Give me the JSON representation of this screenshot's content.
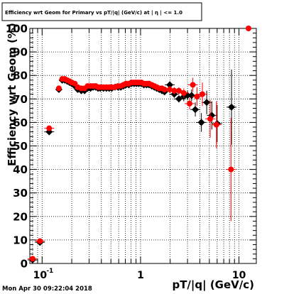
{
  "chart_data": {
    "type": "scatter",
    "title": "Efficiency wrt Geom for Primary vs pT/|q| (GeV/c) at | η | <= 1.0",
    "xlabel": "pT/|q| (GeV/c)",
    "ylabel": "Efficiency wrt Geom (%)",
    "x_scale": "log",
    "xlim": [
      0.075,
      15
    ],
    "ylim": [
      0,
      100
    ],
    "grid": true,
    "x_ticks": [
      {
        "value": 0.1,
        "label": "10",
        "exp": "-1"
      },
      {
        "value": 1,
        "label": "1",
        "exp": ""
      },
      {
        "value": 10,
        "label": "10",
        "exp": ""
      }
    ],
    "y_ticks": [
      {
        "value": 0,
        "label": "0"
      },
      {
        "value": 10,
        "label": "10"
      },
      {
        "value": 20,
        "label": "20"
      },
      {
        "value": 30,
        "label": "30"
      },
      {
        "value": 40,
        "label": "40"
      },
      {
        "value": 50,
        "label": "50"
      },
      {
        "value": 60,
        "label": "60"
      },
      {
        "value": 70,
        "label": "70"
      },
      {
        "value": 80,
        "label": "80"
      },
      {
        "value": 90,
        "label": "90"
      },
      {
        "value": 100,
        "label": "100"
      }
    ],
    "series": [
      {
        "color": "#000000",
        "marker": "diamond",
        "x": [
          0.08,
          0.095,
          0.118,
          0.148,
          0.16,
          0.17,
          0.18,
          0.19,
          0.2,
          0.215,
          0.23,
          0.25,
          0.27,
          0.29,
          0.31,
          0.33,
          0.35,
          0.37,
          0.39,
          0.42,
          0.45,
          0.48,
          0.51,
          0.55,
          0.59,
          0.63,
          0.67,
          0.71,
          0.76,
          0.81,
          0.86,
          0.91,
          0.96,
          1.02,
          1.08,
          1.15,
          1.22,
          1.3,
          1.38,
          1.46,
          1.55,
          1.65,
          1.75,
          1.98,
          2.2,
          2.45,
          2.75,
          3.0,
          3.3,
          3.6,
          4.15,
          4.7,
          5.3,
          6.0,
          8.4
        ],
        "y": [
          1.5,
          9,
          56,
          74,
          78,
          78,
          77.5,
          77,
          76.5,
          75.5,
          74,
          73.5,
          73.5,
          74.5,
          74.5,
          75,
          75,
          74.5,
          74.5,
          74.5,
          74.5,
          74.5,
          74.5,
          75,
          75,
          75,
          75.5,
          76,
          76,
          76.5,
          76.5,
          76.5,
          76.5,
          76.5,
          76,
          76,
          76,
          75.5,
          75,
          74.5,
          74,
          73.5,
          73,
          76,
          72,
          70,
          71,
          71.5,
          71.5,
          65.5,
          60,
          68.5,
          63,
          59.5,
          66.5
        ],
        "err": [
          0,
          0,
          0,
          0,
          0,
          0,
          0,
          0,
          0,
          0,
          0,
          0,
          0,
          0,
          0,
          0,
          0,
          0,
          0,
          0,
          0,
          0,
          0,
          0,
          0,
          0,
          0,
          0,
          0,
          0,
          0,
          0,
          0,
          0,
          0,
          0,
          0,
          0,
          0,
          0,
          0,
          0,
          0,
          1.5,
          1.5,
          1.5,
          2,
          2,
          2.5,
          3,
          4,
          5,
          6,
          8,
          16
        ],
        "xerr_only": [
          true,
          true,
          true,
          false,
          false,
          false,
          false,
          false,
          false,
          false,
          false,
          false,
          false,
          false,
          false,
          false,
          false,
          false,
          false,
          false,
          false,
          false,
          false,
          false,
          false,
          false,
          false,
          false,
          false,
          false,
          false,
          false,
          false,
          false,
          false,
          false,
          false,
          false,
          false,
          false,
          false,
          false,
          false,
          true,
          true,
          true,
          true,
          true,
          true,
          true,
          true,
          true,
          true,
          true,
          true
        ]
      },
      {
        "color": "#ff0000",
        "marker": "circle",
        "x": [
          0.08,
          0.095,
          0.118,
          0.148,
          0.16,
          0.17,
          0.18,
          0.19,
          0.2,
          0.215,
          0.23,
          0.25,
          0.27,
          0.29,
          0.31,
          0.33,
          0.35,
          0.37,
          0.39,
          0.42,
          0.45,
          0.48,
          0.51,
          0.55,
          0.59,
          0.63,
          0.67,
          0.71,
          0.76,
          0.81,
          0.86,
          0.91,
          0.96,
          1.02,
          1.08,
          1.15,
          1.22,
          1.3,
          1.38,
          1.46,
          1.55,
          1.65,
          1.75,
          1.98,
          2.2,
          2.45,
          2.75,
          3.15,
          3.4,
          3.75,
          4.25,
          5.1,
          5.9,
          8.3,
          12.5
        ],
        "y": [
          2,
          9.5,
          57.5,
          74.5,
          78.5,
          78.5,
          78,
          77.5,
          77,
          76.5,
          75,
          74.5,
          74.5,
          75.5,
          75.5,
          75.5,
          75.5,
          75,
          75,
          75,
          75,
          75,
          75,
          75,
          75.5,
          75.5,
          76,
          76.5,
          76.5,
          77,
          77,
          77,
          77,
          77,
          76.5,
          76.5,
          76.5,
          76,
          75.5,
          75,
          74.5,
          74.5,
          74,
          74,
          73.5,
          73.5,
          72.5,
          68,
          76,
          71,
          72,
          61.5,
          59,
          40,
          100
        ],
        "err": [
          0,
          0,
          0,
          0,
          0,
          0,
          0,
          0,
          0,
          0,
          0,
          0,
          0,
          0,
          0,
          0,
          0,
          0,
          0,
          0,
          0,
          0,
          0,
          0,
          0,
          0,
          0,
          0,
          0,
          0,
          0,
          0,
          0,
          0,
          0,
          0,
          0,
          0,
          0,
          0,
          0,
          0,
          0,
          1.5,
          1.5,
          1.5,
          2,
          2.5,
          3,
          4,
          5,
          8,
          10,
          22,
          0
        ],
        "xerr_only": [
          true,
          true,
          true,
          false,
          false,
          false,
          false,
          false,
          false,
          false,
          false,
          false,
          false,
          false,
          false,
          false,
          false,
          false,
          false,
          false,
          false,
          false,
          false,
          false,
          false,
          false,
          false,
          false,
          false,
          false,
          false,
          false,
          false,
          false,
          false,
          false,
          false,
          false,
          false,
          false,
          false,
          false,
          false,
          true,
          true,
          true,
          true,
          true,
          true,
          true,
          true,
          true,
          true,
          true,
          false
        ]
      }
    ]
  },
  "footer": "Mon Apr 30 09:22:04 2018"
}
